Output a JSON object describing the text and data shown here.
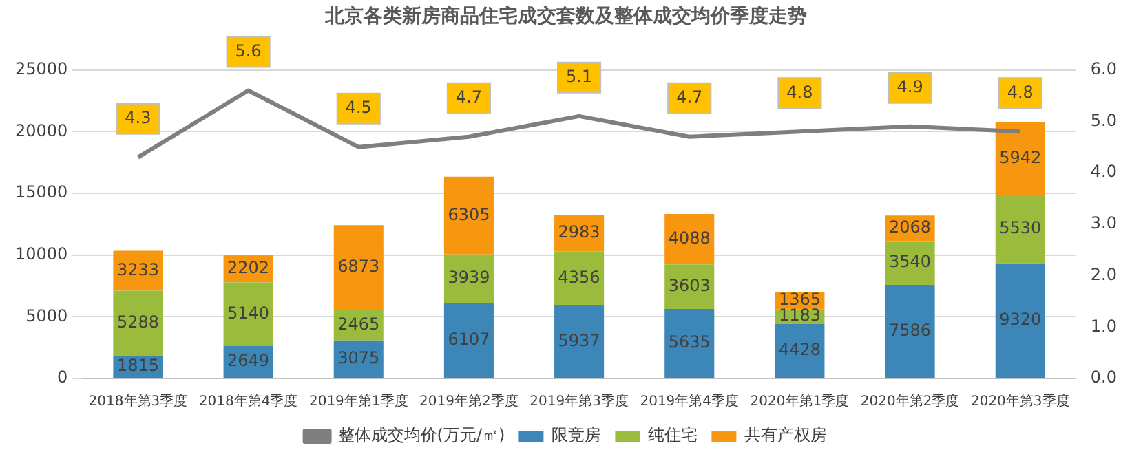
{
  "chart_data": {
    "type": "bar",
    "title": "北京各类新房商品住宅成交套数及整体成交均价季度走势",
    "categories": [
      "2018年第3季度",
      "2018年第4季度",
      "2019年第1季度",
      "2019年第2季度",
      "2019年第3季度",
      "2019年第4季度",
      "2020年第1季度",
      "2020年第2季度",
      "2020年第3季度"
    ],
    "stacked": true,
    "data_labels": true,
    "legend": "bottom",
    "grid": "y",
    "ylim": [
      0,
      25000
    ],
    "yticks": [
      0,
      5000,
      10000,
      15000,
      20000,
      25000
    ],
    "y2lim": [
      0,
      6
    ],
    "y2ticks": [
      {
        "value": 0,
        "label": "0.0"
      },
      {
        "value": 1,
        "label": "1.0"
      },
      {
        "value": 2,
        "label": "2.0"
      },
      {
        "value": 3,
        "label": "3.0"
      },
      {
        "value": 4,
        "label": "4.0"
      },
      {
        "value": 5,
        "label": "5.0"
      },
      {
        "value": 6,
        "label": "6.0"
      }
    ],
    "series": [
      {
        "name": "限竞房",
        "color": "#3d87b8",
        "values": [
          1815,
          2649,
          3075,
          6107,
          5937,
          5635,
          4428,
          7586,
          9320
        ]
      },
      {
        "name": "纯住宅",
        "color": "#9bbb3c",
        "values": [
          5288,
          5140,
          2465,
          3939,
          4356,
          3603,
          1183,
          3540,
          5530
        ]
      },
      {
        "name": "共有产权房",
        "color": "#f7960f",
        "values": [
          3233,
          2202,
          6873,
          6305,
          2983,
          4088,
          1365,
          2068,
          5942
        ]
      },
      {
        "name": "整体成交均价(万元/㎡)",
        "type": "line",
        "axis": "y2",
        "color": "#7f7f7f",
        "marker": "none",
        "values": [
          4.3,
          5.6,
          4.5,
          4.7,
          5.1,
          4.7,
          4.8,
          4.9,
          4.8
        ]
      }
    ]
  }
}
